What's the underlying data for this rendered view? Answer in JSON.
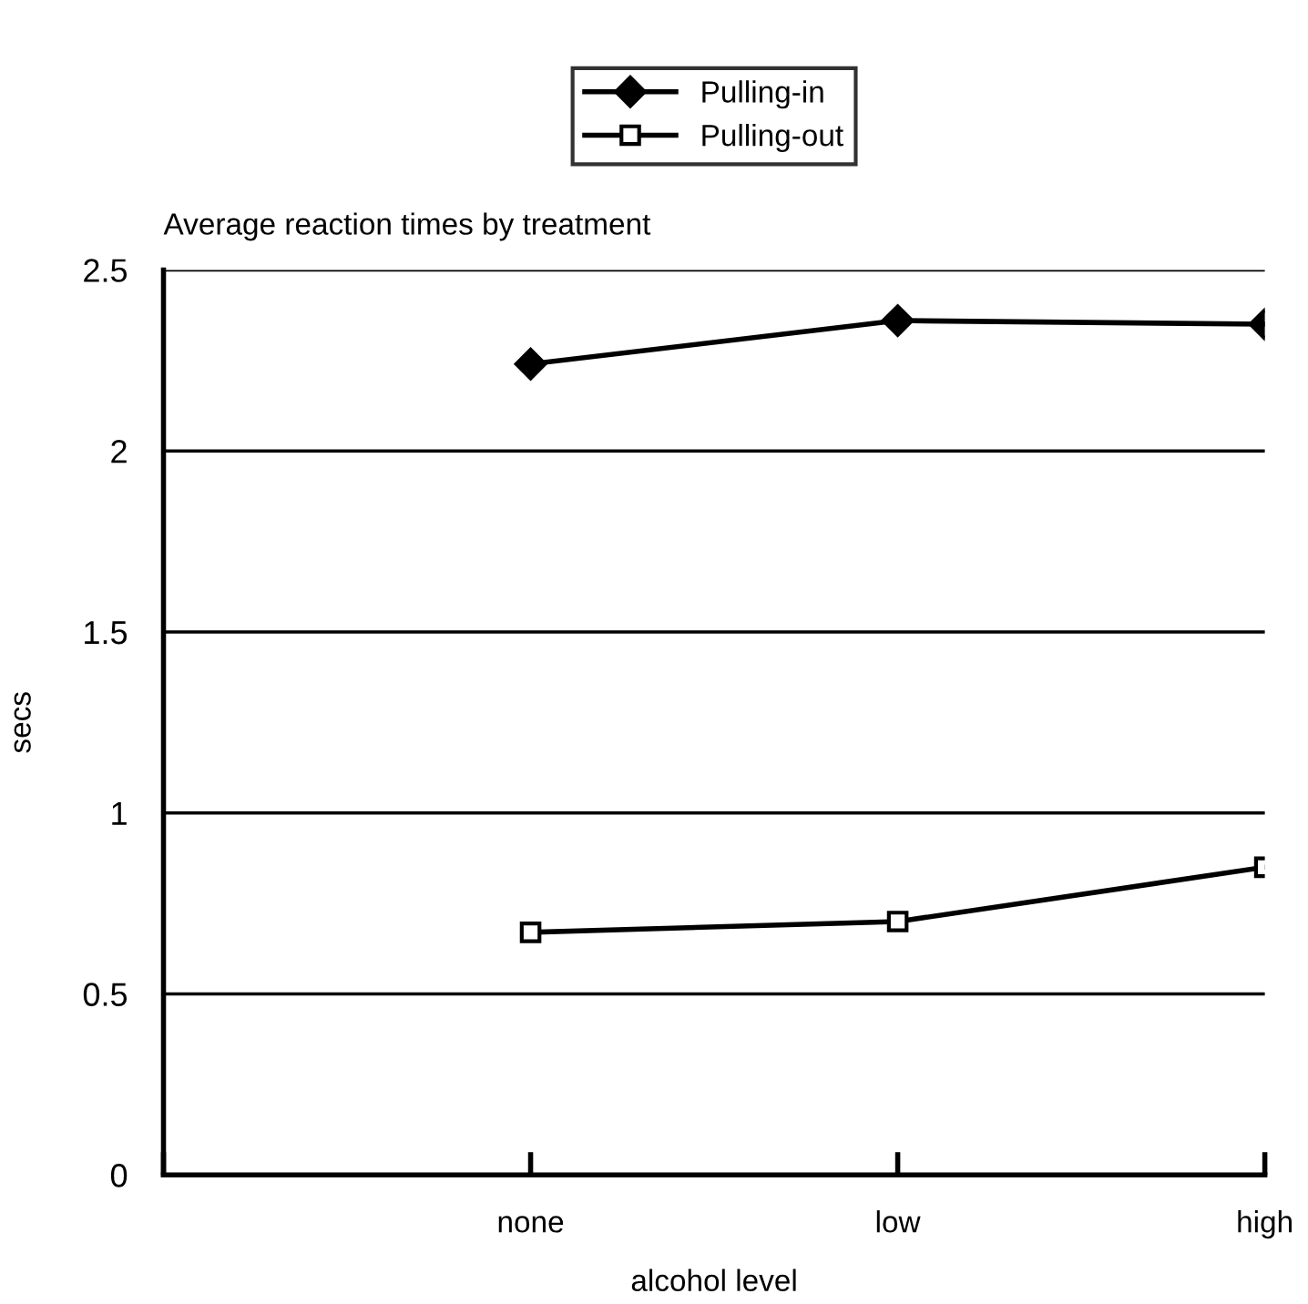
{
  "chart_data": {
    "type": "line",
    "title": "Average reaction times by treatment",
    "xlabel": "alcohol level",
    "ylabel": "secs",
    "categories": [
      null,
      "none",
      "low",
      "high"
    ],
    "series": [
      {
        "name": "Pulling-in",
        "color": "#000000",
        "marker": "diamond",
        "values": [
          null,
          2.24,
          2.36,
          2.35
        ]
      },
      {
        "name": "Pulling-out",
        "color": "#000000",
        "marker": "square",
        "values": [
          null,
          0.67,
          0.7,
          0.85
        ]
      }
    ],
    "ylim": [
      0,
      2.5
    ],
    "yticks": [
      0,
      0.5,
      1,
      1.5,
      2,
      2.5
    ],
    "grid": "y",
    "legend": "top",
    "line_style": "solid"
  }
}
